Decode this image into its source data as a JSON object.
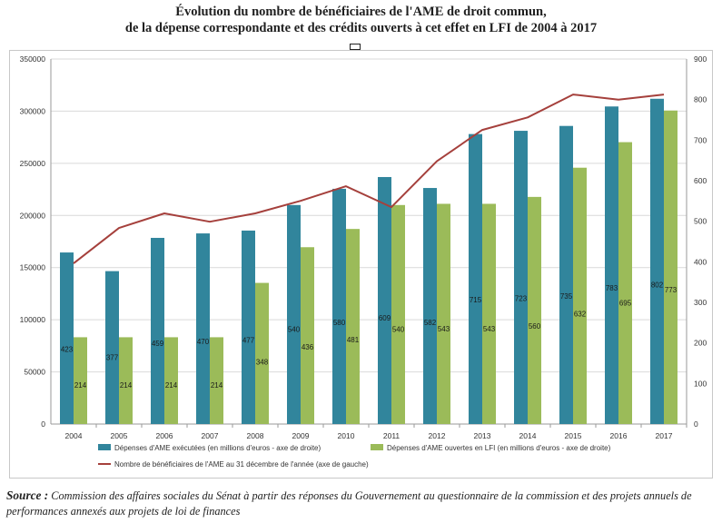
{
  "page": {
    "title_line1": "Évolution du nombre de bénéficiaires de l'AME de droit commun,",
    "title_line2": "de la dépense correspondante et des crédits ouverts à cet effet en LFI de 2004 à 2017",
    "source_label": "Source :",
    "source_text": " Commission des affaires sociales du Sénat à partir des réponses du Gouvernement au questionnaire de la commission et des projets annuels de performances annexés aux projets de loi de finances"
  },
  "chart_data": {
    "type": "bar",
    "categories": [
      "2004",
      "2005",
      "2006",
      "2007",
      "2008",
      "2009",
      "2010",
      "2011",
      "2012",
      "2013",
      "2014",
      "2015",
      "2016",
      "2017"
    ],
    "left_axis": {
      "range": [
        0,
        350000
      ],
      "ticks": [
        "0",
        "50000",
        "100000",
        "150000",
        "200000",
        "250000",
        "300000",
        "350000"
      ]
    },
    "right_axis": {
      "range": [
        0,
        900
      ],
      "ticks": [
        "0",
        "100",
        "200",
        "300",
        "400",
        "500",
        "600",
        "700",
        "800",
        "900"
      ]
    },
    "series": [
      {
        "name": "Dépenses d'AME exécutées (en millions d'euros - axe de droite)",
        "kind": "bar",
        "axis": "right",
        "color": "#31859c",
        "values": [
          423,
          377,
          459,
          470,
          477,
          540,
          580,
          609,
          582,
          715,
          723,
          735,
          783,
          802
        ],
        "labels": [
          "423",
          "377",
          "459",
          "470",
          "477",
          "540",
          "580",
          "609",
          "582",
          "715",
          "723",
          "735",
          "783",
          "802"
        ]
      },
      {
        "name": "Dépenses d'AME ouvertes en LFI (en millions d'euros - axe de droite)",
        "kind": "bar",
        "axis": "right",
        "color": "#9bbb59",
        "values": [
          214,
          214,
          214,
          214,
          348,
          436,
          481,
          540,
          543,
          543,
          560,
          632,
          695,
          773
        ],
        "labels": [
          "214",
          "214",
          "214",
          "214",
          "348",
          "436",
          "481",
          "540",
          "543",
          "543",
          "560",
          "632",
          "695",
          "773"
        ]
      },
      {
        "name": "Nombre de bénéficiaires de l'AME au 31 décembre de l'année (axe de gauche)",
        "kind": "line",
        "axis": "left",
        "color": "#a5403c",
        "values": [
          154000,
          188000,
          202000,
          194000,
          202000,
          214000,
          228000,
          208000,
          252000,
          282000,
          294000,
          316000,
          311000,
          316000
        ]
      }
    ],
    "grid": true,
    "legend_position": "bottom"
  }
}
